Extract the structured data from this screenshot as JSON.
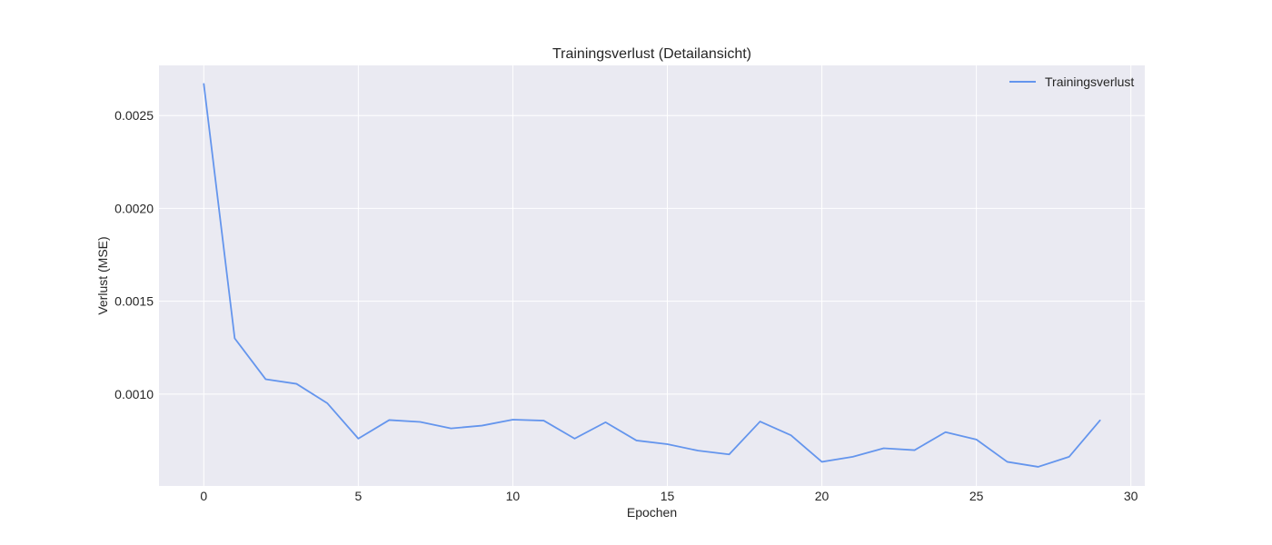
{
  "chart_data": {
    "type": "line",
    "title": "Trainingsverlust (Detailansicht)",
    "xlabel": "Epochen",
    "ylabel": "Verlust (MSE)",
    "xlim": [
      -1.45,
      30.45
    ],
    "ylim": [
      0.000505,
      0.00277
    ],
    "x_ticks": [
      0,
      5,
      10,
      15,
      20,
      25,
      30
    ],
    "y_ticks": [
      0.001,
      0.0015,
      0.002,
      0.0025
    ],
    "y_tick_labels": [
      "0.0010",
      "0.0015",
      "0.0020",
      "0.0025"
    ],
    "grid": true,
    "legend_position": "upper right",
    "background_color": "#eaeaf2",
    "grid_color": "#ffffff",
    "series": [
      {
        "name": "Trainingsverlust",
        "color": "#6495ed",
        "x": [
          0,
          1,
          2,
          3,
          4,
          5,
          6,
          7,
          8,
          9,
          10,
          11,
          12,
          13,
          14,
          15,
          16,
          17,
          18,
          19,
          20,
          21,
          22,
          23,
          24,
          25,
          26,
          27,
          28,
          29
        ],
        "values": [
          0.00267,
          0.0013,
          0.00108,
          0.001055,
          0.00095,
          0.00076,
          0.00086,
          0.00085,
          0.000815,
          0.00083,
          0.000862,
          0.000857,
          0.00076,
          0.000848,
          0.00075,
          0.00073,
          0.000695,
          0.000675,
          0.000852,
          0.000778,
          0.000635,
          0.000662,
          0.000708,
          0.000698,
          0.000795,
          0.000755,
          0.000635,
          0.000608,
          0.000662,
          0.000858
        ]
      }
    ]
  }
}
